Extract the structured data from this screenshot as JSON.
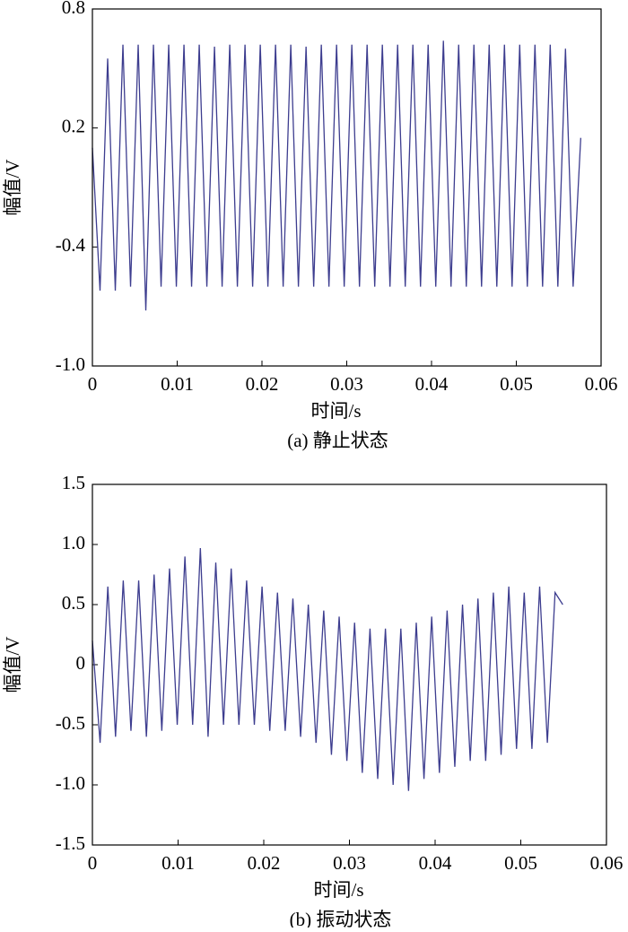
{
  "chart_data": [
    {
      "type": "line",
      "title": "(a) 静止状态",
      "xlabel": "时间/s",
      "ylabel": "幅值/V",
      "color": "#3d3d8f",
      "xlim": [
        0,
        0.06
      ],
      "xticks": [
        0,
        0.01,
        0.02,
        0.03,
        0.04,
        0.05,
        0.06
      ],
      "ylim": [
        -1.0,
        0.8
      ],
      "yticks": [
        {
          "value": -1.0,
          "label": "-1.0"
        },
        -0.4,
        0.2,
        0.8
      ],
      "x": [
        0,
        0.0009,
        0.0018,
        0.0027,
        0.0036,
        0.0045,
        0.0054,
        0.0063,
        0.0072,
        0.0081,
        0.009,
        0.0099,
        0.0108,
        0.0117,
        0.0126,
        0.0135,
        0.0144,
        0.0153,
        0.0162,
        0.0171,
        0.018,
        0.0189,
        0.0198,
        0.0207,
        0.0216,
        0.0225,
        0.0234,
        0.0243,
        0.0252,
        0.0261,
        0.027,
        0.0279,
        0.0288,
        0.0297,
        0.0306,
        0.0315,
        0.0324,
        0.0333,
        0.0342,
        0.0351,
        0.036,
        0.0369,
        0.0378,
        0.0387,
        0.0396,
        0.0405,
        0.0414,
        0.0423,
        0.0432,
        0.0441,
        0.045,
        0.0459,
        0.0468,
        0.0477,
        0.0486,
        0.0495,
        0.0504,
        0.0513,
        0.0522,
        0.0531,
        0.054,
        0.0549,
        0.0558,
        0.0567,
        0.0576
      ],
      "values": [
        0.1,
        -0.62,
        0.55,
        -0.62,
        0.62,
        -0.6,
        0.62,
        -0.72,
        0.62,
        -0.6,
        0.62,
        -0.6,
        0.62,
        -0.6,
        0.62,
        -0.6,
        0.61,
        -0.6,
        0.62,
        -0.6,
        0.62,
        -0.6,
        0.62,
        -0.6,
        0.62,
        -0.6,
        0.62,
        -0.6,
        0.61,
        -0.6,
        0.62,
        -0.6,
        0.62,
        -0.6,
        0.62,
        -0.6,
        0.62,
        -0.6,
        0.62,
        -0.6,
        0.62,
        -0.6,
        0.62,
        -0.6,
        0.62,
        -0.6,
        0.64,
        -0.6,
        0.62,
        -0.6,
        0.62,
        -0.6,
        0.62,
        -0.6,
        0.62,
        -0.6,
        0.62,
        -0.6,
        0.62,
        -0.6,
        0.62,
        -0.6,
        0.6,
        -0.6,
        0.15
      ]
    },
    {
      "type": "line",
      "title": "(b) 振动状态",
      "xlabel": "时间/s",
      "ylabel": "幅值/V",
      "color": "#3d3d8f",
      "xlim": [
        0,
        0.06
      ],
      "xticks": [
        0,
        0.01,
        0.02,
        0.03,
        0.04,
        0.05,
        0.06
      ],
      "ylim": [
        -1.5,
        1.5
      ],
      "yticks": [
        -1.5,
        {
          "value": -1.0,
          "label": "-1.0"
        },
        -0.5,
        0,
        0.5,
        {
          "value": 1.0,
          "label": "1.0"
        },
        1.5
      ],
      "x": [
        0,
        0.0009,
        0.0018,
        0.0027,
        0.0036,
        0.0045,
        0.0054,
        0.0063,
        0.0072,
        0.0081,
        0.009,
        0.0099,
        0.0108,
        0.0117,
        0.0126,
        0.0135,
        0.0144,
        0.0153,
        0.0162,
        0.0171,
        0.018,
        0.0189,
        0.0198,
        0.0207,
        0.0216,
        0.0225,
        0.0234,
        0.0243,
        0.0252,
        0.0261,
        0.027,
        0.0279,
        0.0288,
        0.0297,
        0.0306,
        0.0315,
        0.0324,
        0.0333,
        0.0342,
        0.0351,
        0.036,
        0.0369,
        0.0378,
        0.0387,
        0.0396,
        0.0405,
        0.0414,
        0.0423,
        0.0432,
        0.0441,
        0.045,
        0.0459,
        0.0468,
        0.0477,
        0.0486,
        0.0495,
        0.0504,
        0.0513,
        0.0522,
        0.0531,
        0.054,
        0.0549
      ],
      "values": [
        0.2,
        -0.65,
        0.65,
        -0.6,
        0.7,
        -0.55,
        0.7,
        -0.6,
        0.75,
        -0.55,
        0.8,
        -0.5,
        0.9,
        -0.5,
        0.97,
        -0.6,
        0.85,
        -0.5,
        0.8,
        -0.5,
        0.7,
        -0.5,
        0.65,
        -0.55,
        0.6,
        -0.55,
        0.55,
        -0.6,
        0.5,
        -0.65,
        0.45,
        -0.75,
        0.4,
        -0.8,
        0.35,
        -0.9,
        0.3,
        -0.95,
        0.3,
        -1.0,
        0.3,
        -1.05,
        0.35,
        -0.95,
        0.4,
        -0.9,
        0.45,
        -0.85,
        0.5,
        -0.8,
        0.55,
        -0.8,
        0.6,
        -0.75,
        0.65,
        -0.7,
        0.6,
        -0.7,
        0.65,
        -0.65,
        0.6,
        0.5
      ]
    }
  ]
}
